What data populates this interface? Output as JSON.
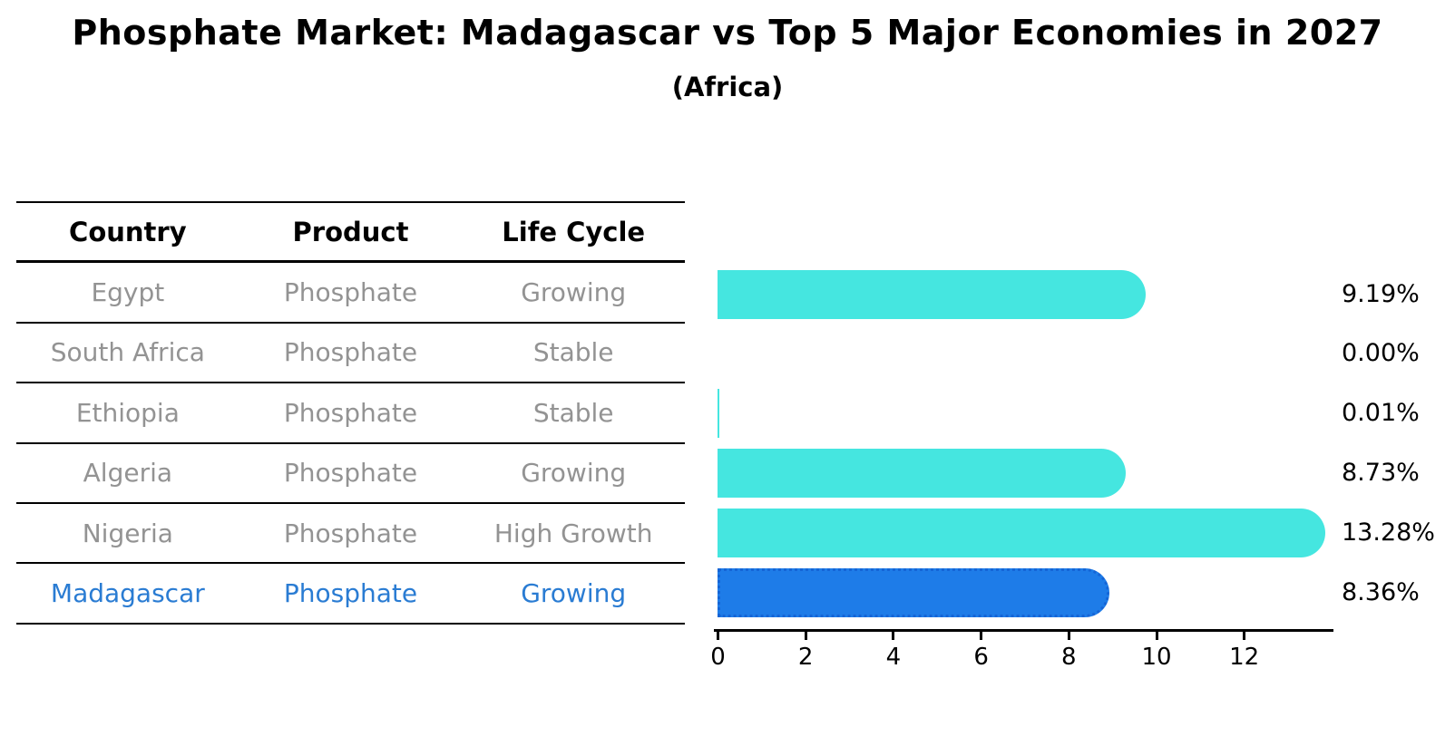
{
  "title": "Phosphate Market: Madagascar vs Top 5 Major Economies in 2027",
  "subtitle": "(Africa)",
  "table": {
    "headers": [
      "Country",
      "Product",
      "Life Cycle"
    ],
    "rows": [
      {
        "country": "Egypt",
        "product": "Phosphate",
        "life_cycle": "Growing",
        "highlight": false
      },
      {
        "country": "South Africa",
        "product": "Phosphate",
        "life_cycle": "Stable",
        "highlight": false
      },
      {
        "country": "Ethiopia",
        "product": "Phosphate",
        "life_cycle": "Stable",
        "highlight": false
      },
      {
        "country": "Algeria",
        "product": "Phosphate",
        "life_cycle": "Growing",
        "highlight": false
      },
      {
        "country": "Nigeria",
        "product": "Phosphate",
        "life_cycle": "High Growth",
        "highlight": false
      },
      {
        "country": "Madagascar",
        "product": "Phosphate",
        "life_cycle": "Growing",
        "highlight": true
      }
    ]
  },
  "chart_data": {
    "type": "bar",
    "orientation": "horizontal",
    "title": "Phosphate Market: Madagascar vs Top 5 Major Economies in 2027",
    "subtitle": "(Africa)",
    "categories": [
      "Egypt",
      "South Africa",
      "Ethiopia",
      "Algeria",
      "Nigeria",
      "Madagascar"
    ],
    "values": [
      9.19,
      0.0,
      0.01,
      8.73,
      13.28,
      8.36
    ],
    "value_labels": [
      "9.19%",
      "0.00%",
      "0.01%",
      "8.73%",
      "13.28%",
      "8.36%"
    ],
    "xticks": [
      0,
      2,
      4,
      6,
      8,
      10,
      12
    ],
    "xlim": [
      0,
      14
    ],
    "grid": false,
    "legend": "none",
    "highlight_index": 5,
    "bar_colors": [
      "#45E6E0",
      "#45E6E0",
      "#45E6E0",
      "#45E6E0",
      "#45E6E0",
      "#1E7CE8"
    ]
  },
  "colors": {
    "background": "#FFFFFF",
    "ink": "#000000",
    "row_text": "#939393",
    "highlight_text": "#2A7CD3",
    "bar_cyan": "#45E6E0",
    "bar_blue": "#1E7CE8",
    "bar_blue_border": "#1565D6"
  }
}
